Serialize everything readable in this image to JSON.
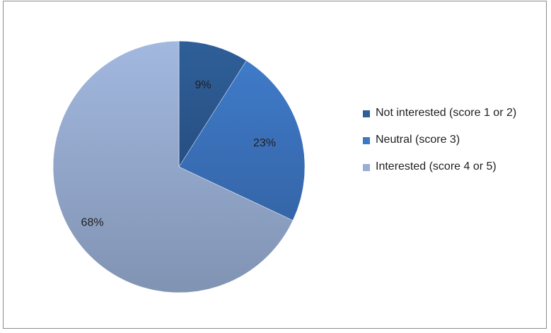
{
  "chart_data": {
    "type": "pie",
    "title": "",
    "categories": [
      "Not interested (score 1 or 2)",
      "Neutral (score 3)",
      "Interested (score 4 or 5)"
    ],
    "values": [
      9,
      23,
      68
    ],
    "labels": [
      "9%",
      "23%",
      "68%"
    ],
    "colors": [
      "#2f5f99",
      "#3d78c4",
      "#9aaed3"
    ],
    "legend_position": "right"
  }
}
